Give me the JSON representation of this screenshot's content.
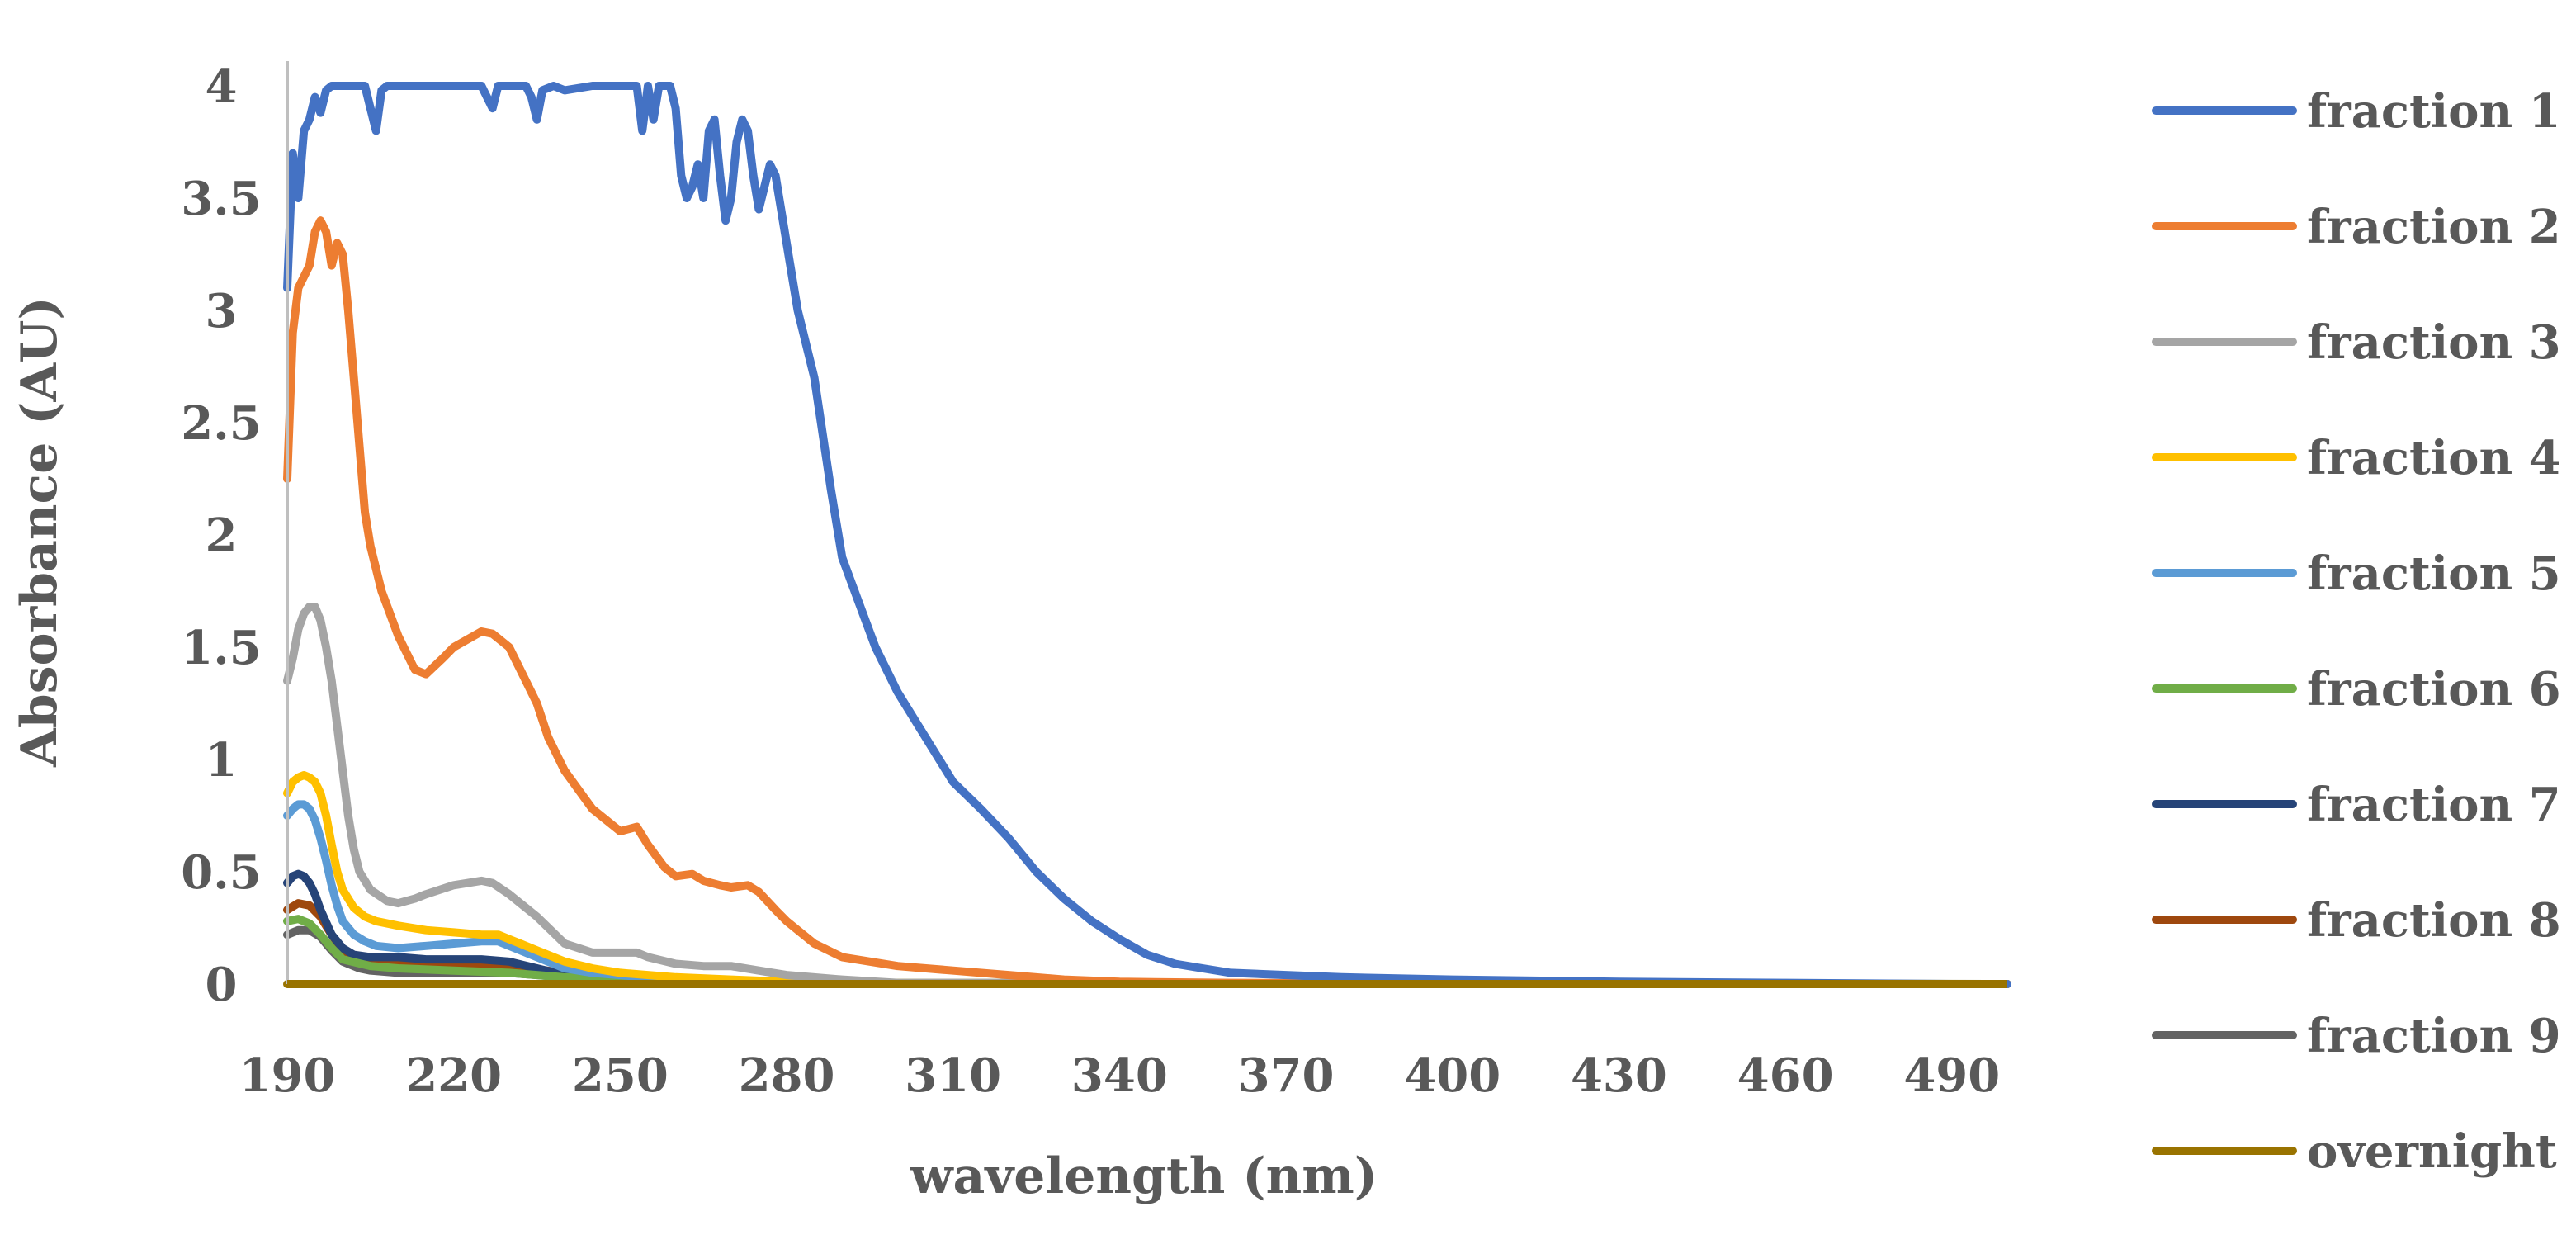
{
  "chart_data": {
    "type": "line",
    "title": "",
    "xlabel": "wavelength (nm)",
    "ylabel": "Absorbance (AU)",
    "xlim": [
      190,
      500
    ],
    "ylim": [
      0,
      4
    ],
    "x_ticks": [
      190,
      220,
      250,
      280,
      310,
      340,
      370,
      400,
      430,
      460,
      490
    ],
    "y_ticks": [
      0,
      0.5,
      1,
      1.5,
      2,
      2.5,
      3,
      3.5,
      4
    ],
    "y_tick_labels": [
      "0",
      "0.5",
      "1",
      "1.5",
      "2",
      "2.5",
      "3",
      "3.5",
      "4"
    ],
    "legend_position": "right",
    "grid": false,
    "series": [
      {
        "name": "fraction 1",
        "color": "#4472C4",
        "x": [
          190,
          191,
          192,
          193,
          194,
          195,
          196,
          197,
          198,
          200,
          202,
          204,
          205,
          206,
          207,
          208,
          210,
          212,
          215,
          220,
          225,
          227,
          228,
          230,
          233,
          234,
          235,
          236,
          238,
          240,
          245,
          250,
          252,
          253,
          254,
          255,
          256,
          257,
          258,
          259,
          260,
          261,
          262,
          263,
          264,
          265,
          266,
          267,
          268,
          269,
          270,
          271,
          272,
          273,
          274,
          275,
          276,
          277,
          278,
          280,
          282,
          283,
          285,
          288,
          290,
          293,
          296,
          300,
          305,
          310,
          315,
          320,
          325,
          330,
          335,
          340,
          345,
          350,
          355,
          360,
          370,
          380,
          400,
          430,
          460,
          490,
          500
        ],
        "y": [
          3.1,
          3.7,
          3.5,
          3.8,
          3.85,
          3.95,
          3.88,
          3.98,
          4.0,
          4.0,
          4.0,
          4.0,
          3.9,
          3.8,
          3.98,
          4.0,
          4.0,
          4.0,
          4.0,
          4.0,
          4.0,
          3.9,
          4.0,
          4.0,
          4.0,
          3.95,
          3.85,
          3.98,
          4.0,
          3.98,
          4.0,
          4.0,
          4.0,
          4.0,
          3.8,
          4.0,
          3.85,
          4.0,
          4.0,
          4.0,
          3.9,
          3.6,
          3.5,
          3.55,
          3.65,
          3.5,
          3.8,
          3.85,
          3.6,
          3.4,
          3.5,
          3.75,
          3.85,
          3.8,
          3.6,
          3.45,
          3.55,
          3.65,
          3.6,
          3.3,
          3.0,
          2.9,
          2.7,
          2.2,
          1.9,
          1.7,
          1.5,
          1.3,
          1.1,
          0.9,
          0.78,
          0.65,
          0.5,
          0.38,
          0.28,
          0.2,
          0.13,
          0.09,
          0.07,
          0.05,
          0.04,
          0.03,
          0.02,
          0.01,
          0.005,
          0.0,
          0.0
        ]
      },
      {
        "name": "fraction 2",
        "color": "#ED7D31",
        "x": [
          190,
          191,
          192,
          193,
          194,
          195,
          196,
          197,
          198,
          199,
          200,
          201,
          202,
          203,
          204,
          205,
          207,
          210,
          213,
          215,
          218,
          220,
          225,
          227,
          230,
          233,
          235,
          237,
          240,
          245,
          250,
          253,
          255,
          258,
          260,
          263,
          265,
          268,
          270,
          273,
          275,
          278,
          280,
          285,
          290,
          300,
          310,
          320,
          330,
          340,
          360,
          400,
          450,
          500
        ],
        "y": [
          2.25,
          2.9,
          3.1,
          3.15,
          3.2,
          3.35,
          3.4,
          3.35,
          3.2,
          3.3,
          3.25,
          3.0,
          2.7,
          2.4,
          2.1,
          1.95,
          1.75,
          1.55,
          1.4,
          1.38,
          1.45,
          1.5,
          1.57,
          1.56,
          1.5,
          1.35,
          1.25,
          1.1,
          0.95,
          0.78,
          0.68,
          0.7,
          0.62,
          0.52,
          0.48,
          0.49,
          0.46,
          0.44,
          0.43,
          0.44,
          0.41,
          0.33,
          0.28,
          0.18,
          0.12,
          0.08,
          0.06,
          0.04,
          0.02,
          0.01,
          0.005,
          0.0,
          0.0,
          0.0
        ]
      },
      {
        "name": "fraction 3",
        "color": "#A5A5A5",
        "x": [
          190,
          191,
          192,
          193,
          194,
          195,
          196,
          197,
          198,
          199,
          200,
          201,
          202,
          203,
          205,
          208,
          210,
          213,
          215,
          220,
          225,
          227,
          230,
          235,
          240,
          245,
          250,
          253,
          255,
          260,
          265,
          270,
          275,
          280,
          290,
          300,
          500
        ],
        "y": [
          1.35,
          1.45,
          1.58,
          1.65,
          1.68,
          1.68,
          1.62,
          1.5,
          1.35,
          1.15,
          0.95,
          0.75,
          0.6,
          0.5,
          0.42,
          0.37,
          0.36,
          0.38,
          0.4,
          0.44,
          0.46,
          0.45,
          0.4,
          0.3,
          0.18,
          0.14,
          0.14,
          0.14,
          0.12,
          0.09,
          0.08,
          0.08,
          0.06,
          0.04,
          0.02,
          0.005,
          0.0
        ]
      },
      {
        "name": "fraction 4",
        "color": "#FFC000",
        "x": [
          190,
          191,
          192,
          193,
          194,
          195,
          196,
          197,
          198,
          199,
          200,
          202,
          204,
          206,
          210,
          215,
          220,
          225,
          228,
          230,
          235,
          240,
          245,
          250,
          260,
          270,
          280,
          290,
          500
        ],
        "y": [
          0.85,
          0.9,
          0.92,
          0.93,
          0.92,
          0.9,
          0.85,
          0.75,
          0.62,
          0.5,
          0.42,
          0.34,
          0.3,
          0.28,
          0.26,
          0.24,
          0.23,
          0.22,
          0.22,
          0.2,
          0.15,
          0.1,
          0.07,
          0.05,
          0.03,
          0.02,
          0.01,
          0.005,
          0.0
        ]
      },
      {
        "name": "fraction 5",
        "color": "#5B9BD5",
        "x": [
          190,
          191,
          192,
          193,
          194,
          195,
          196,
          197,
          198,
          199,
          200,
          202,
          204,
          206,
          210,
          215,
          220,
          225,
          228,
          230,
          235,
          240,
          245,
          250,
          260,
          270,
          280,
          500
        ],
        "y": [
          0.75,
          0.78,
          0.8,
          0.8,
          0.78,
          0.73,
          0.65,
          0.55,
          0.44,
          0.35,
          0.28,
          0.22,
          0.19,
          0.17,
          0.16,
          0.17,
          0.18,
          0.19,
          0.19,
          0.17,
          0.12,
          0.07,
          0.05,
          0.04,
          0.02,
          0.01,
          0.005,
          0.0
        ]
      },
      {
        "name": "fraction 6",
        "color": "#70AD47",
        "x": [
          190,
          192,
          194,
          196,
          198,
          200,
          205,
          210,
          220,
          230,
          240,
          260,
          280,
          500
        ],
        "y": [
          0.28,
          0.29,
          0.27,
          0.22,
          0.16,
          0.11,
          0.08,
          0.07,
          0.06,
          0.05,
          0.03,
          0.01,
          0.0,
          0.0
        ]
      },
      {
        "name": "fraction 7",
        "color": "#264478",
        "x": [
          190,
          191,
          192,
          193,
          194,
          195,
          196,
          198,
          200,
          202,
          205,
          210,
          215,
          220,
          225,
          230,
          235,
          240,
          250,
          260,
          280,
          500
        ],
        "y": [
          0.45,
          0.48,
          0.49,
          0.48,
          0.45,
          0.4,
          0.33,
          0.22,
          0.16,
          0.13,
          0.12,
          0.12,
          0.11,
          0.11,
          0.11,
          0.1,
          0.07,
          0.04,
          0.02,
          0.01,
          0.0,
          0.0
        ]
      },
      {
        "name": "fraction 8",
        "color": "#9E480E",
        "x": [
          190,
          192,
          194,
          196,
          198,
          200,
          203,
          205,
          210,
          220,
          230,
          240,
          250,
          260,
          280,
          500
        ],
        "y": [
          0.33,
          0.36,
          0.35,
          0.3,
          0.22,
          0.15,
          0.11,
          0.1,
          0.09,
          0.09,
          0.08,
          0.05,
          0.03,
          0.01,
          0.0,
          0.0
        ]
      },
      {
        "name": "fraction 9",
        "color": "#636363",
        "x": [
          190,
          192,
          194,
          196,
          198,
          200,
          203,
          205,
          210,
          220,
          230,
          240,
          250,
          260,
          280,
          500
        ],
        "y": [
          0.22,
          0.24,
          0.24,
          0.21,
          0.15,
          0.1,
          0.07,
          0.06,
          0.05,
          0.05,
          0.05,
          0.03,
          0.02,
          0.01,
          0.0,
          0.0
        ]
      },
      {
        "name": "overnight",
        "color": "#997300",
        "x": [
          190,
          500
        ],
        "y": [
          0.0,
          0.0
        ]
      }
    ]
  }
}
